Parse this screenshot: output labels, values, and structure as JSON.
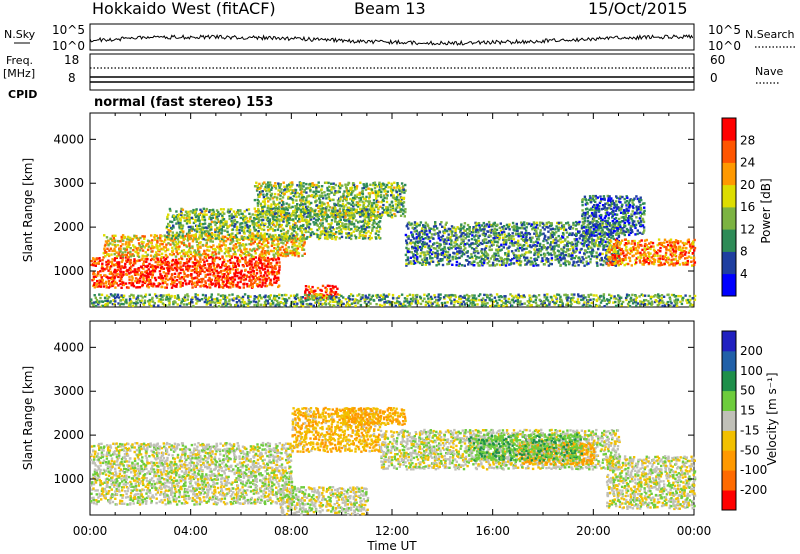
{
  "header": {
    "title": "Hokkaido West (fitACF)",
    "beam": "Beam 13",
    "date": "15/Oct/2015"
  },
  "top_panels": {
    "noise_label": "N.Sky",
    "noise_ticks": [
      "10^5",
      "10^0"
    ],
    "noise_right_label": "N.Search",
    "freq_label_1": "Freq.",
    "freq_label_2": "[MHz]",
    "freq_ticks": [
      "18",
      "8"
    ],
    "nave_ticks": [
      "60",
      "0"
    ],
    "nave_label": "Nave",
    "cpid_label": "CPID",
    "cpid_text": "normal (fast stereo) 153"
  },
  "chart_data": [
    {
      "type": "heatmap",
      "name": "power",
      "ylabel": "Slant Range [km]",
      "xlabel": "",
      "xlim": [
        0,
        24
      ],
      "ylim": [
        180,
        4600
      ],
      "y_ticks": [
        1000,
        2000,
        3000,
        4000
      ],
      "colorbar_label": "Power [dB]",
      "colorbar_ticks": [
        4,
        8,
        12,
        16,
        20,
        24,
        28
      ],
      "colorbar_colors": [
        "#0000ff",
        "#1f3fa0",
        "#2e8b57",
        "#7cb342",
        "#dddd00",
        "#ff9900",
        "#ff5500",
        "#ff0000"
      ],
      "structures": [
        {
          "t": [
            0.0,
            7.5
          ],
          "r": [
            600,
            1300
          ],
          "level": 28
        },
        {
          "t": [
            0.5,
            8.5
          ],
          "r": [
            1300,
            1800
          ],
          "level": 20
        },
        {
          "t": [
            3.0,
            11.5
          ],
          "r": [
            1700,
            2400
          ],
          "level": 14
        },
        {
          "t": [
            6.5,
            12.5
          ],
          "r": [
            2200,
            3000
          ],
          "level": 14
        },
        {
          "t": [
            8.5,
            9.8
          ],
          "r": [
            350,
            650
          ],
          "level": 28
        },
        {
          "t": [
            12.5,
            21.0
          ],
          "r": [
            1100,
            2100
          ],
          "level": 10
        },
        {
          "t": [
            20.5,
            24.0
          ],
          "r": [
            1100,
            1700
          ],
          "level": 24
        },
        {
          "t": [
            19.5,
            22.0
          ],
          "r": [
            1800,
            2700
          ],
          "level": 8
        },
        {
          "t": [
            0.0,
            24.0
          ],
          "r": [
            180,
            450
          ],
          "level": 12
        }
      ]
    },
    {
      "type": "heatmap",
      "name": "velocity",
      "ylabel": "Slant Range [km]",
      "xlabel": "Time UT",
      "xlim": [
        0,
        24
      ],
      "ylim": [
        180,
        4600
      ],
      "y_ticks": [
        1000,
        2000,
        3000,
        4000
      ],
      "x_tick_labels": [
        "00:00",
        "04:00",
        "08:00",
        "12:00",
        "16:00",
        "20:00",
        "00:00"
      ],
      "colorbar_label": "Velocity [m s⁻¹]",
      "colorbar_ticks": [
        -200,
        -100,
        -50,
        -15,
        15,
        50,
        100,
        200
      ],
      "colorbar_colors": [
        "#ff0000",
        "#ff6a00",
        "#ff9900",
        "#f2c000",
        "#c0c0b8",
        "#6dcc3c",
        "#1e8f4a",
        "#2060a8",
        "#2020c0"
      ],
      "structures": [
        {
          "t": [
            0.0,
            8.0
          ],
          "r": [
            400,
            1800
          ],
          "level": 0
        },
        {
          "t": [
            8.0,
            11.5
          ],
          "r": [
            1600,
            2600
          ],
          "level": -40
        },
        {
          "t": [
            10.0,
            12.5
          ],
          "r": [
            2200,
            2600
          ],
          "level": -60
        },
        {
          "t": [
            11.5,
            21.0
          ],
          "r": [
            1200,
            2100
          ],
          "level": 0
        },
        {
          "t": [
            17.0,
            20.0
          ],
          "r": [
            1300,
            1800
          ],
          "level": -60
        },
        {
          "t": [
            15.0,
            19.5
          ],
          "r": [
            1400,
            2000
          ],
          "level": 40
        },
        {
          "t": [
            7.5,
            11.0
          ],
          "r": [
            180,
            800
          ],
          "level": 0
        },
        {
          "t": [
            20.5,
            24.0
          ],
          "r": [
            300,
            1500
          ],
          "level": 0
        }
      ]
    }
  ]
}
